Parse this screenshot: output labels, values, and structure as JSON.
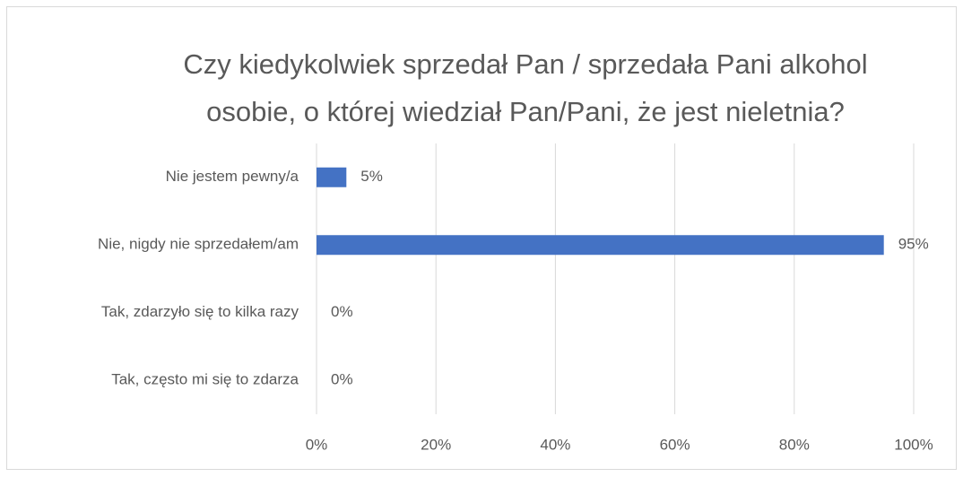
{
  "chart_data": {
    "type": "bar",
    "orientation": "horizontal",
    "title": [
      "Czy kiedykolwiek sprzedał Pan / sprzedała Pani alkohol",
      "osobie, o której wiedział Pan/Pani, że jest nieletnia?"
    ],
    "categories": [
      "Nie jestem pewny/a",
      "Nie, nigdy nie sprzedałem/am",
      "Tak, zdarzyło się to kilka razy",
      "Tak, często mi się to zdarza"
    ],
    "values": [
      5,
      95,
      0,
      0
    ],
    "value_labels": [
      "5%",
      "95%",
      "0%",
      "0%"
    ],
    "color": "#4472c4",
    "xlim": [
      0,
      100
    ],
    "xticks": [
      {
        "value": 0,
        "label": "0%"
      },
      {
        "value": 20,
        "label": "20%"
      },
      {
        "value": 40,
        "label": "40%"
      },
      {
        "value": 60,
        "label": "60%"
      },
      {
        "value": 80,
        "label": "80%"
      },
      {
        "value": 100,
        "label": "100%"
      }
    ],
    "grid": true
  }
}
